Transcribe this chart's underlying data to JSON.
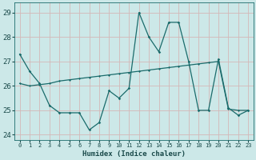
{
  "xlabel": "Humidex (Indice chaleur)",
  "bg_color": "#cce8e8",
  "grid_color": "#b0d0d0",
  "line_color": "#1a6b6b",
  "xlim": [
    -0.5,
    23.5
  ],
  "ylim": [
    23.8,
    29.4
  ],
  "yticks": [
    24,
    25,
    26,
    27,
    28,
    29
  ],
  "xticks": [
    0,
    1,
    2,
    3,
    4,
    5,
    6,
    7,
    8,
    9,
    10,
    11,
    12,
    13,
    14,
    15,
    16,
    17,
    18,
    19,
    20,
    21,
    22,
    23
  ],
  "series1_x": [
    0,
    1,
    2,
    3,
    4,
    5,
    6,
    7,
    8,
    9,
    10,
    11,
    12,
    13,
    14,
    15,
    16,
    17,
    18,
    19,
    20,
    21,
    22,
    23
  ],
  "series1_y": [
    27.3,
    26.6,
    26.1,
    25.2,
    24.9,
    24.9,
    24.9,
    24.2,
    24.5,
    25.8,
    25.5,
    25.9,
    29.0,
    28.0,
    27.4,
    28.6,
    28.6,
    27.0,
    25.0,
    25.0,
    27.1,
    25.1,
    24.8,
    25.0
  ],
  "series2_x": [
    0,
    1,
    2,
    3,
    4,
    5,
    6,
    7,
    8,
    9,
    10,
    11,
    12,
    13,
    14,
    15,
    16,
    17,
    18,
    19,
    20,
    21,
    22,
    23
  ],
  "series2_y": [
    26.1,
    26.0,
    26.05,
    26.1,
    26.2,
    26.25,
    26.3,
    26.35,
    26.4,
    26.45,
    26.5,
    26.55,
    26.6,
    26.65,
    26.7,
    26.75,
    26.8,
    26.85,
    26.9,
    26.95,
    27.0,
    25.05,
    25.0,
    25.0
  ]
}
